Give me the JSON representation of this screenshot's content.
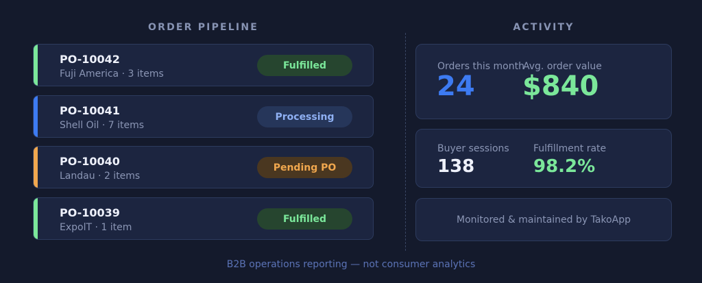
{
  "pipeline": {
    "title": "ORDER PIPELINE",
    "orders": [
      {
        "id": "PO-10042",
        "meta": "Fuji America · 3 items",
        "status": "Fulfilled",
        "status_color": "#7be79a"
      },
      {
        "id": "PO-10041",
        "meta": "Shell Oil · 7 items",
        "status": "Processing",
        "status_color": "#3d7bf2"
      },
      {
        "id": "PO-10040",
        "meta": "Landau · 2 items",
        "status": "Pending PO",
        "status_color": "#f0a74e"
      },
      {
        "id": "PO-10039",
        "meta": "ExpolT · 1 item",
        "status": "Fulfilled",
        "status_color": "#7be79a"
      }
    ]
  },
  "activity": {
    "title": "ACTIVITY",
    "orders_this_month": {
      "label": "Orders this month",
      "value": "24"
    },
    "avg_order_value": {
      "label": "Avg. order value",
      "value": "$840"
    },
    "buyer_sessions": {
      "label": "Buyer sessions",
      "value": "138"
    },
    "fulfillment_rate": {
      "label": "Fulfillment rate",
      "value": "98.2%"
    },
    "monitor_note": "Monitored & maintained by TakoApp"
  },
  "footer": "B2B operations reporting — not consumer analytics",
  "colors": {
    "background": "#141a2c",
    "card": "#1c2540",
    "fulfilled": "#7be79a",
    "processing": "#3d7bf2",
    "pending": "#f0a74e"
  }
}
